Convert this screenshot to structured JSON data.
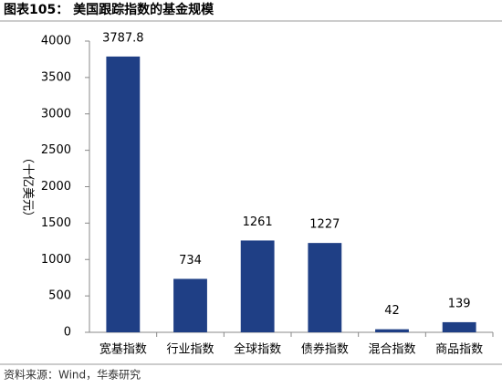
{
  "chart_data": {
    "type": "bar",
    "title": "图表105： 美国跟踪指数的基金规模",
    "y_label": "（十亿美元）",
    "categories": [
      "宽基指数",
      "行业指数",
      "全球指数",
      "债券指数",
      "混合指数",
      "商品指数"
    ],
    "values": [
      3787.8,
      734,
      1261,
      1227,
      42,
      139
    ],
    "color": "#1f3f85",
    "ylim": [
      0,
      4000
    ],
    "yticks": [
      0,
      500,
      1000,
      1500,
      2000,
      2500,
      3000,
      3500,
      4000
    ],
    "grid": false,
    "source": "资料来源：Wind，华泰研究"
  }
}
